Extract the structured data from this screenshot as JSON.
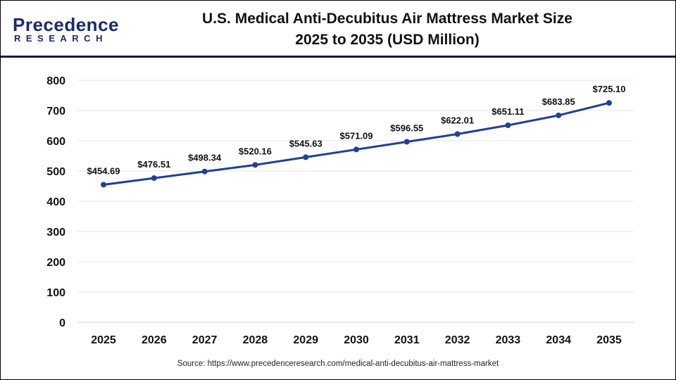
{
  "logo": {
    "line1": "Precedence",
    "line2": "RESEARCH"
  },
  "title_line1": "U.S. Medical Anti-Decubitus Air Mattress Market Size",
  "title_line2": "2025 to 2035 (USD Million)",
  "source": "Source: https://www.precedenceresearch.com/medical-anti-decubitus-air-mattress-market",
  "colors": {
    "line": "#1f3f9a",
    "header_rule": "#101a44",
    "grid": "#e6e6e6"
  },
  "chart_data": {
    "type": "line",
    "title": "U.S. Medical Anti-Decubitus Air Mattress Market Size 2025 to 2035 (USD Million)",
    "categories": [
      "2025",
      "2026",
      "2027",
      "2028",
      "2029",
      "2030",
      "2031",
      "2032",
      "2033",
      "2034",
      "2035"
    ],
    "values": [
      454.69,
      476.51,
      498.34,
      520.16,
      545.63,
      571.09,
      596.55,
      622.01,
      651.11,
      683.85,
      725.1
    ],
    "data_labels": [
      "$454.69",
      "$476.51",
      "$498.34",
      "$520.16",
      "$545.63",
      "$571.09",
      "$596.55",
      "$622.01",
      "$651.11",
      "$683.85",
      "$725.10"
    ],
    "yticks": [
      "0",
      "100",
      "200",
      "300",
      "400",
      "500",
      "600",
      "700",
      "800"
    ],
    "ylim": [
      0,
      800
    ],
    "grid": true,
    "legend": "none"
  }
}
